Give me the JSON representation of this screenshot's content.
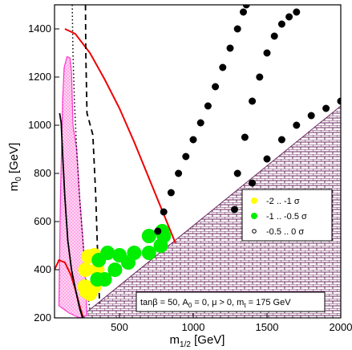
{
  "chart_data": {
    "type": "scatter",
    "xlabel_main": "m",
    "xlabel_sub": "1/2",
    "xlabel_unit": "[GeV]",
    "ylabel_main": "m",
    "ylabel_sub": "0",
    "ylabel_unit": "[GeV]",
    "xlim": [
      60,
      2000
    ],
    "ylim": [
      200,
      1500
    ],
    "x_ticks": [
      500,
      1000,
      1500,
      2000
    ],
    "y_ticks": [
      200,
      400,
      600,
      800,
      1000,
      1200,
      1400
    ],
    "grid": false,
    "legend_position": "right",
    "note": "tanβ = 50, A0 = 0, μ > 0, mt = 175 GeV",
    "note_parts": {
      "p1": "tanβ = 50, A",
      "s1": "0",
      "p2": " = 0, μ > 0, m",
      "s2": "t",
      "p3": " = 175 GeV"
    },
    "colors": {
      "yellow_band": "#ffff00",
      "green_band": "#00ee00",
      "black_band": "#000000",
      "red_curve": "#ee0000",
      "magenta_region": "#ff33cc",
      "hatched_region": "#6b2a5f"
    },
    "series": [
      {
        "name": "-2 .. -1 σ",
        "color": "#ffff00",
        "points": [
          [
            265,
            330
          ],
          [
            270,
            400
          ],
          [
            290,
            455
          ],
          [
            330,
            460
          ],
          [
            350,
            400
          ],
          [
            330,
            330
          ],
          [
            300,
            300
          ],
          [
            275,
            310
          ]
        ]
      },
      {
        "name": "-1 .. -0.5 σ",
        "color": "#00ee00",
        "points": [
          [
            350,
            360
          ],
          [
            360,
            440
          ],
          [
            420,
            470
          ],
          [
            500,
            460
          ],
          [
            600,
            470
          ],
          [
            700,
            540
          ],
          [
            790,
            560
          ],
          [
            800,
            540
          ],
          [
            780,
            500
          ],
          [
            700,
            470
          ],
          [
            560,
            430
          ],
          [
            470,
            400
          ],
          [
            400,
            360
          ]
        ]
      },
      {
        "name": "-0.5 .. 0 σ",
        "color": "#000000",
        "points": [
          [
            760,
            560
          ],
          [
            800,
            640
          ],
          [
            850,
            720
          ],
          [
            900,
            800
          ],
          [
            950,
            870
          ],
          [
            1000,
            940
          ],
          [
            1050,
            1010
          ],
          [
            1100,
            1080
          ],
          [
            1150,
            1160
          ],
          [
            1200,
            1240
          ],
          [
            1250,
            1320
          ],
          [
            1300,
            1400
          ],
          [
            1340,
            1470
          ],
          [
            1360,
            1500
          ],
          [
            1280,
            650
          ],
          [
            1400,
            760
          ],
          [
            1500,
            860
          ],
          [
            1600,
            940
          ],
          [
            1700,
            1000
          ],
          [
            1800,
            1040
          ],
          [
            1900,
            1070
          ],
          [
            2000,
            1100
          ],
          [
            1300,
            800
          ],
          [
            1350,
            950
          ],
          [
            1400,
            1100
          ],
          [
            1450,
            1200
          ],
          [
            1500,
            1300
          ],
          [
            1550,
            1370
          ],
          [
            1600,
            1420
          ],
          [
            1650,
            1450
          ],
          [
            1700,
            1470
          ]
        ]
      }
    ]
  }
}
